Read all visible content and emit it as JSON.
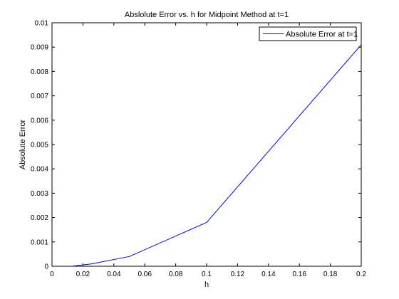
{
  "chart_data": {
    "type": "line",
    "title": "Abslolute Error vs. h for Midpoint Method at t=1",
    "xlabel": "h",
    "ylabel": "Absolute Error",
    "xlim": [
      0,
      0.2
    ],
    "ylim": [
      0,
      0.01
    ],
    "xticks": [
      0,
      0.02,
      0.04,
      0.06,
      0.08,
      0.1,
      0.12,
      0.14,
      0.16,
      0.18,
      0.2
    ],
    "xtick_labels": [
      "0",
      "0.02",
      "0.04",
      "0.06",
      "0.08",
      "0.1",
      "0.12",
      "0.14",
      "0.16",
      "0.18",
      "0.2"
    ],
    "yticks": [
      0,
      0.001,
      0.002,
      0.003,
      0.004,
      0.005,
      0.006,
      0.007,
      0.008,
      0.009,
      0.01
    ],
    "ytick_labels": [
      "0",
      "0.001",
      "0.002",
      "0.003",
      "0.004",
      "0.005",
      "0.006",
      "0.007",
      "0.008",
      "0.009",
      "0.01"
    ],
    "grid": false,
    "legend_position": "top-right",
    "series": [
      {
        "name": "Absolute Error at t=1",
        "color": "#0000ff",
        "x": [
          0.0125,
          0.025,
          0.05,
          0.1,
          0.2
        ],
        "y": [
          0.0,
          9e-05,
          0.0004,
          0.0018,
          0.0091
        ]
      }
    ]
  }
}
